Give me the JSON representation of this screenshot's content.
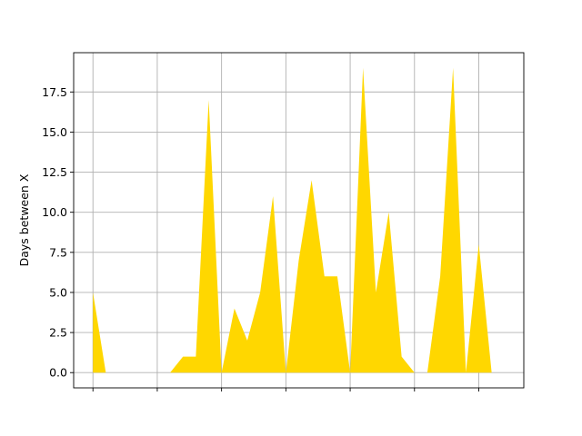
{
  "chart_data": {
    "type": "area",
    "ylabel": "Days between X",
    "xlabel": "",
    "title": "",
    "x": [
      0,
      1,
      2,
      3,
      4,
      5,
      6,
      7,
      8,
      9,
      10,
      11,
      12,
      13,
      14,
      15,
      16,
      17,
      18,
      19,
      20,
      21,
      22,
      23,
      24,
      25,
      26,
      27,
      28,
      29,
      30,
      31,
      32
    ],
    "series": [
      {
        "values": [
          5,
          0,
          0,
          0,
          0,
          0,
          0,
          1,
          1,
          17,
          0,
          4,
          2,
          5,
          11,
          0,
          7,
          12,
          6,
          6,
          0,
          19,
          5,
          10,
          1,
          0,
          0,
          6,
          19,
          0,
          8,
          0,
          0
        ]
      }
    ],
    "ylim": [
      -0.95,
      19.95
    ],
    "xlim": [
      -1.5,
      33.5
    ],
    "yticks": [
      0.0,
      2.5,
      5.0,
      7.5,
      10.0,
      12.5,
      15.0,
      17.5
    ],
    "ytick_labels": [
      "0.0",
      "2.5",
      "5.0",
      "7.5",
      "10.0",
      "12.5",
      "15.0",
      "17.5"
    ],
    "xticks": [
      0,
      5,
      10,
      15,
      20,
      25,
      30
    ],
    "grid": true,
    "fill_color": "#ffd700"
  }
}
